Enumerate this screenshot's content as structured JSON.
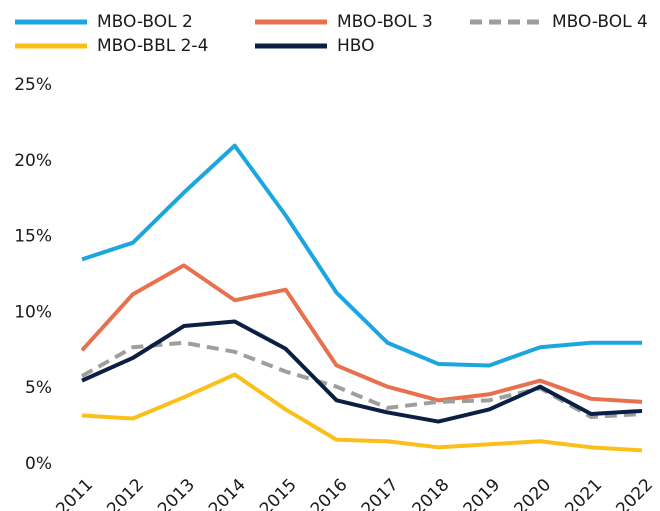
{
  "chart_data": {
    "type": "line",
    "categories": [
      "2011",
      "2012",
      "2013",
      "2014",
      "2015",
      "2016",
      "2017",
      "2018",
      "2019",
      "2020",
      "2021",
      "2022"
    ],
    "series": [
      {
        "name": "MBO-BOL 2",
        "color": "#1ba6e0",
        "values": [
          13.5,
          14.6,
          17.9,
          21.0,
          16.4,
          11.3,
          8.0,
          6.6,
          6.5,
          7.7,
          8.0,
          8.0
        ]
      },
      {
        "name": "MBO-BOL 3",
        "color": "#e8704f",
        "values": [
          7.5,
          11.2,
          13.1,
          10.8,
          11.5,
          6.5,
          5.1,
          4.2,
          4.6,
          5.5,
          4.3,
          4.1
        ]
      },
      {
        "name": "MBO-BOL 4",
        "color": "#9e9e9e",
        "dashed": true,
        "values": [
          5.8,
          7.7,
          8.0,
          7.4,
          6.1,
          5.1,
          3.7,
          4.1,
          4.2,
          5.0,
          3.1,
          3.3
        ]
      },
      {
        "name": "MBO-BBL 2-4",
        "color": "#fbbf1a",
        "values": [
          3.2,
          3.0,
          4.4,
          5.9,
          3.6,
          1.6,
          1.5,
          1.1,
          1.3,
          1.5,
          1.1,
          0.9
        ]
      },
      {
        "name": "HBO",
        "color": "#0b1f44",
        "values": [
          5.5,
          7.0,
          9.1,
          9.4,
          7.6,
          4.2,
          3.4,
          2.8,
          3.6,
          5.1,
          3.3,
          3.5
        ]
      }
    ],
    "ylim": [
      0,
      25
    ],
    "yticks": [
      {
        "value": 0,
        "label": "0%"
      },
      {
        "value": 5,
        "label": "5%"
      },
      {
        "value": 10,
        "label": "10%"
      },
      {
        "value": 15,
        "label": "15%"
      },
      {
        "value": 20,
        "label": "20%"
      },
      {
        "value": 25,
        "label": "25%"
      }
    ],
    "grid": false,
    "legend": "top"
  }
}
